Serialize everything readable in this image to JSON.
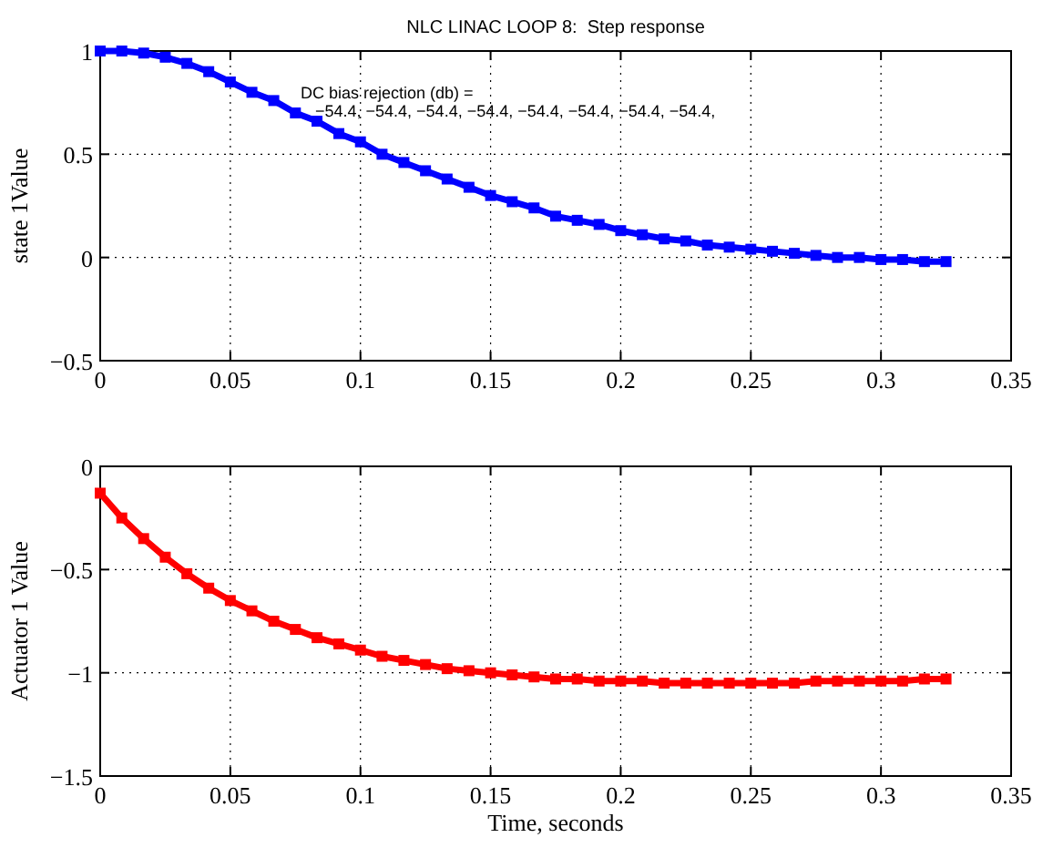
{
  "chart_data": [
    {
      "type": "line",
      "title": "NLC LINAC LOOP 8:  Step response",
      "ylabel": "state 1Value",
      "annotations": [
        "DC bias rejection (db) =\n−54.4, −54.4, −54.4, −54.4, −54.4, −54.4, −54.4, −54.4,"
      ],
      "x": [
        0,
        0.0083,
        0.0167,
        0.025,
        0.0333,
        0.0417,
        0.05,
        0.0583,
        0.0667,
        0.075,
        0.0833,
        0.0917,
        0.1,
        0.1083,
        0.1167,
        0.125,
        0.1333,
        0.1417,
        0.15,
        0.1583,
        0.1667,
        0.175,
        0.1833,
        0.1917,
        0.2,
        0.2083,
        0.2167,
        0.225,
        0.2333,
        0.2417,
        0.25,
        0.2583,
        0.2667,
        0.275,
        0.2833,
        0.2917,
        0.3,
        0.3083,
        0.3167,
        0.325
      ],
      "series": [
        {
          "color": "#0000ff",
          "values": [
            1,
            1,
            0.99,
            0.97,
            0.94,
            0.9,
            0.85,
            0.8,
            0.76,
            0.7,
            0.66,
            0.6,
            0.56,
            0.5,
            0.46,
            0.42,
            0.38,
            0.34,
            0.3,
            0.27,
            0.24,
            0.2,
            0.18,
            0.16,
            0.13,
            0.11,
            0.09,
            0.08,
            0.06,
            0.05,
            0.04,
            0.03,
            0.02,
            0.01,
            0,
            0,
            -0.01,
            -0.01,
            -0.02,
            -0.02
          ]
        }
      ],
      "xlim": [
        0,
        0.35
      ],
      "xticks": [
        0,
        0.05,
        0.1,
        0.15,
        0.2,
        0.25,
        0.3,
        0.35
      ],
      "ylim": [
        -0.5,
        1
      ],
      "yticks": [
        -0.5,
        0,
        0.5,
        1
      ],
      "grid": true,
      "marker": "square",
      "line_style": "solid"
    },
    {
      "type": "line",
      "xlabel": "Time, seconds",
      "ylabel": "Actuator 1 Value",
      "x": [
        0,
        0.0083,
        0.0167,
        0.025,
        0.0333,
        0.0417,
        0.05,
        0.0583,
        0.0667,
        0.075,
        0.0833,
        0.0917,
        0.1,
        0.1083,
        0.1167,
        0.125,
        0.1333,
        0.1417,
        0.15,
        0.1583,
        0.1667,
        0.175,
        0.1833,
        0.1917,
        0.2,
        0.2083,
        0.2167,
        0.225,
        0.2333,
        0.2417,
        0.25,
        0.2583,
        0.2667,
        0.275,
        0.2833,
        0.2917,
        0.3,
        0.3083,
        0.3167,
        0.325
      ],
      "series": [
        {
          "color": "#ff0000",
          "values": [
            -0.13,
            -0.25,
            -0.35,
            -0.44,
            -0.52,
            -0.59,
            -0.65,
            -0.7,
            -0.75,
            -0.79,
            -0.83,
            -0.86,
            -0.89,
            -0.92,
            -0.94,
            -0.96,
            -0.98,
            -0.99,
            -1,
            -1.01,
            -1.02,
            -1.03,
            -1.03,
            -1.04,
            -1.04,
            -1.04,
            -1.05,
            -1.05,
            -1.05,
            -1.05,
            -1.05,
            -1.05,
            -1.05,
            -1.04,
            -1.04,
            -1.04,
            -1.04,
            -1.04,
            -1.03,
            -1.03
          ]
        }
      ],
      "xlim": [
        0,
        0.35
      ],
      "xticks": [
        0,
        0.05,
        0.1,
        0.15,
        0.2,
        0.25,
        0.3,
        0.35
      ],
      "ylim": [
        -1.5,
        0
      ],
      "yticks": [
        -1.5,
        -1,
        -0.5,
        0
      ],
      "grid": true,
      "marker": "square",
      "line_style": "solid"
    }
  ]
}
